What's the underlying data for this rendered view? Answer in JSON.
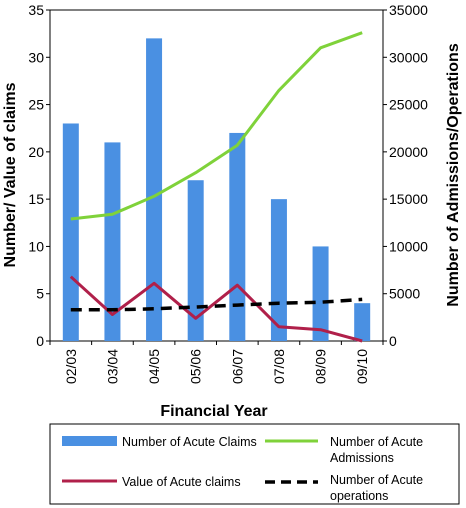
{
  "chart_data": {
    "type": "bar",
    "categories": [
      "02/03",
      "03/04",
      "04/05",
      "05/06",
      "06/07",
      "07/08",
      "08/09",
      "09/10"
    ],
    "xlabel": "Financial Year",
    "ylabel": "Number/ Value of claims",
    "y2label": "Number of Admissions/Operations",
    "ylim": [
      0,
      35
    ],
    "y2lim": [
      0,
      35000
    ],
    "yticks": [
      0,
      5,
      10,
      15,
      20,
      25,
      30,
      35
    ],
    "y2ticks": [
      0,
      5000,
      10000,
      15000,
      20000,
      25000,
      30000,
      35000
    ],
    "legend_placement": "bottom",
    "series": [
      {
        "name": "Number of Acute Claims",
        "kind": "bar",
        "axis": "left",
        "color": "#4a90e2",
        "values": [
          23,
          21,
          32,
          17,
          22,
          15,
          10,
          4
        ]
      },
      {
        "name": "Number of Acute Admissions",
        "kind": "line",
        "axis": "right",
        "color": "#7fd23a",
        "values": [
          12900,
          13400,
          15300,
          17800,
          20700,
          26500,
          31000,
          32600
        ]
      },
      {
        "name": "Value of Acute claims",
        "kind": "line",
        "axis": "left",
        "color": "#b0204a",
        "values": [
          6.8,
          2.8,
          6.1,
          2.4,
          5.9,
          1.5,
          1.2,
          0
        ]
      },
      {
        "name": "Number of Acute operations",
        "kind": "line",
        "axis": "right",
        "color": "#000000",
        "dash": true,
        "values": [
          3300,
          3300,
          3400,
          3600,
          3800,
          4000,
          4100,
          4400
        ]
      }
    ],
    "legend": {
      "acute_claims": "Number of Acute Claims",
      "admissions_line1": "Number of Acute",
      "admissions_line2": "Admissions",
      "value_claims": "Value of Acute claims",
      "operations_line1": "Number of Acute",
      "operations_line2": "operations"
    }
  }
}
